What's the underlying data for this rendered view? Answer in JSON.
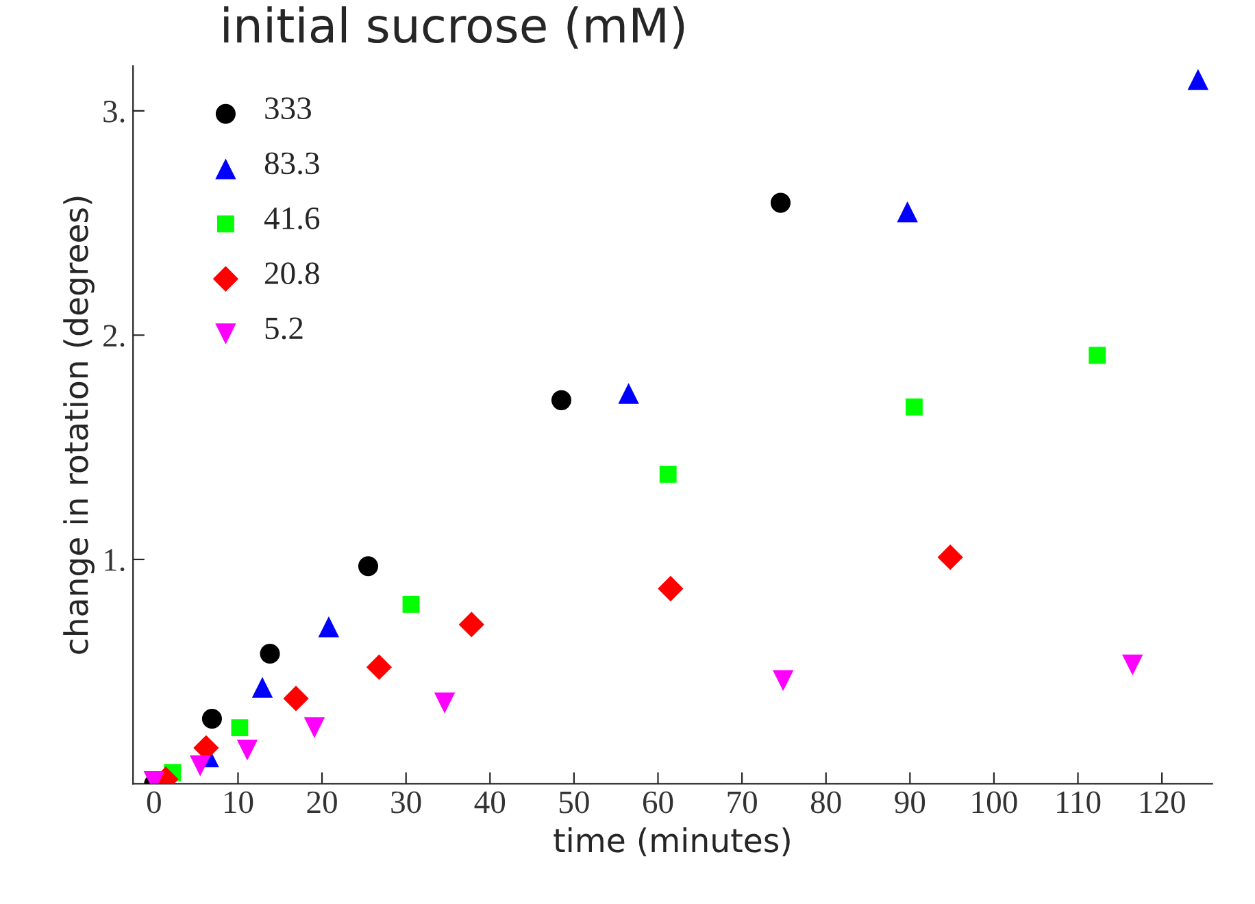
{
  "chart_data": {
    "type": "scatter",
    "title": "initial sucrose (mM)",
    "xlabel": "time (minutes)",
    "ylabel": "change in rotation (degrees)",
    "xlim": [
      -2.5,
      126
    ],
    "ylim": [
      0,
      3.2
    ],
    "xticks": [
      0,
      10,
      20,
      30,
      40,
      50,
      60,
      70,
      80,
      90,
      100,
      110,
      120
    ],
    "yticks": [
      {
        "value": 1,
        "label": "1."
      },
      {
        "value": 2,
        "label": "2."
      },
      {
        "value": 3,
        "label": "3."
      }
    ],
    "grid": false,
    "legend": "top left",
    "series": [
      {
        "name": "333",
        "color": "#000000",
        "marker": "circle",
        "x": [
          0,
          6.9,
          13.8,
          25.5,
          48.5,
          74.6
        ],
        "values": [
          0,
          0.29,
          0.58,
          0.97,
          1.71,
          2.59
        ]
      },
      {
        "name": "83.3",
        "color": "#0000ff",
        "marker": "triangle",
        "x": [
          6.5,
          12.9,
          20.8,
          56.5,
          89.7,
          124.3
        ],
        "values": [
          0.12,
          0.43,
          0.7,
          1.74,
          2.55,
          3.14
        ]
      },
      {
        "name": "41.6",
        "color": "#00ff00",
        "marker": "square",
        "x": [
          2.2,
          10.2,
          30.6,
          61.2,
          90.5,
          112.3
        ],
        "values": [
          0.05,
          0.25,
          0.8,
          1.38,
          1.68,
          1.91
        ]
      },
      {
        "name": "20.8",
        "color": "#ff0000",
        "marker": "diamond",
        "x": [
          1.4,
          6.2,
          16.9,
          26.8,
          37.8,
          61.5,
          94.8
        ],
        "values": [
          0.02,
          0.16,
          0.38,
          0.52,
          0.71,
          0.87,
          1.01
        ]
      },
      {
        "name": "5.2",
        "color": "#ff00ff",
        "marker": "triangle_down",
        "x": [
          0,
          5.5,
          11.1,
          19.1,
          34.6,
          74.9,
          116.5
        ],
        "values": [
          0.01,
          0.08,
          0.15,
          0.25,
          0.36,
          0.46,
          0.53
        ]
      }
    ]
  }
}
